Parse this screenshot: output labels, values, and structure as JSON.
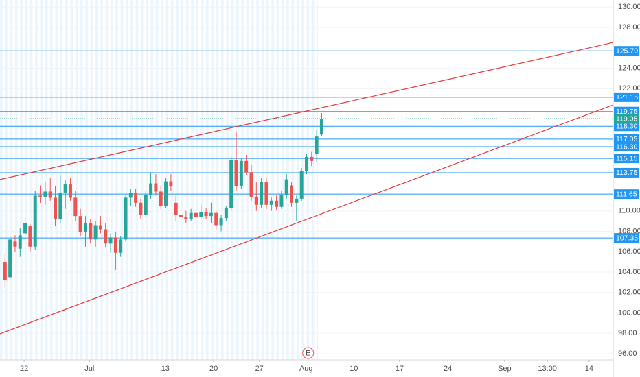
{
  "chart_data": {
    "type": "candlestick",
    "x": [
      0,
      1,
      2,
      3,
      4,
      5,
      6,
      7,
      8,
      9,
      10,
      11,
      12,
      13,
      14,
      15,
      16,
      17,
      18,
      19,
      20,
      21,
      22,
      23,
      24,
      25,
      26,
      27,
      28,
      29,
      30,
      31,
      32,
      33,
      34,
      35,
      36,
      37,
      38,
      39,
      40,
      41,
      42,
      43,
      44,
      45,
      46,
      47,
      48,
      49,
      50,
      51,
      52,
      53,
      54,
      55,
      56,
      57,
      58,
      59,
      60,
      61,
      62,
      63
    ],
    "open": [
      105.0,
      103.5,
      107.0,
      106.3,
      107.8,
      108.5,
      106.5,
      111.5,
      111.4,
      111.9,
      111.3,
      109.2,
      111.8,
      112.6,
      111.3,
      109.5,
      107.9,
      108.8,
      107.2,
      108.6,
      108.2,
      106.8,
      107.4,
      105.9,
      107.2,
      111.3,
      111.8,
      110.8,
      109.6,
      111.6,
      112.7,
      111.9,
      110.5,
      112.9,
      110.8,
      109.6,
      109.4,
      109.2,
      109.8,
      109.4,
      109.9,
      109.5,
      109.8,
      108.6,
      109.3,
      110.3,
      115.0,
      112.4,
      114.9,
      113.8,
      111.4,
      110.6,
      112.8,
      110.6,
      111.0,
      110.4,
      111.6,
      112.5,
      110.8,
      111.2,
      113.9,
      115.3,
      115.6,
      117.5
    ],
    "high": [
      105.8,
      107.5,
      107.6,
      108.3,
      109.4,
      108.7,
      112.0,
      112.5,
      112.8,
      113.2,
      112.4,
      113.5,
      113.0,
      113.2,
      112.0,
      110.2,
      109.5,
      109.2,
      109.0,
      109.5,
      108.8,
      107.8,
      107.9,
      107.5,
      111.5,
      112.2,
      112.2,
      111.2,
      112.0,
      113.8,
      113.6,
      112.5,
      113.2,
      113.6,
      111.5,
      110.3,
      110.0,
      110.2,
      110.6,
      110.6,
      110.3,
      110.8,
      110.0,
      109.6,
      110.5,
      115.3,
      117.8,
      115.2,
      115.5,
      114.5,
      112.8,
      113.2,
      113.2,
      111.3,
      111.5,
      112.0,
      113.6,
      112.8,
      111.5,
      114.2,
      115.6,
      115.8,
      118.0,
      119.6
    ],
    "low": [
      102.5,
      103.3,
      106.0,
      105.5,
      107.2,
      106.0,
      106.2,
      110.8,
      110.6,
      111.0,
      108.5,
      108.8,
      110.2,
      111.0,
      109.0,
      107.5,
      106.5,
      106.8,
      106.5,
      107.8,
      106.4,
      105.9,
      104.2,
      105.5,
      107.0,
      110.5,
      110.4,
      109.2,
      109.4,
      111.2,
      111.5,
      110.2,
      110.3,
      112.0,
      109.0,
      109.0,
      108.8,
      109.0,
      107.3,
      109.2,
      109.2,
      108.8,
      108.2,
      108.0,
      109.0,
      110.0,
      112.0,
      112.2,
      113.5,
      111.0,
      110.0,
      110.3,
      110.2,
      110.0,
      110.1,
      110.2,
      111.2,
      110.4,
      109.0,
      111.0,
      113.6,
      114.4,
      114.8,
      117.3
    ],
    "close": [
      103.2,
      107.2,
      106.5,
      107.6,
      108.8,
      106.5,
      111.5,
      111.4,
      111.9,
      111.3,
      109.2,
      111.8,
      112.6,
      111.3,
      109.5,
      107.9,
      108.8,
      107.2,
      108.6,
      108.2,
      106.8,
      107.4,
      105.9,
      107.2,
      111.3,
      111.8,
      110.8,
      109.6,
      111.6,
      112.7,
      111.9,
      110.5,
      112.9,
      112.4,
      109.6,
      109.4,
      109.2,
      109.8,
      109.4,
      109.9,
      109.5,
      109.8,
      108.6,
      109.3,
      110.3,
      115.0,
      112.4,
      114.9,
      113.8,
      111.4,
      110.6,
      112.8,
      110.6,
      111.0,
      110.4,
      111.6,
      113.1,
      110.8,
      111.2,
      113.9,
      115.3,
      114.9,
      117.3,
      119.05
    ],
    "up_color": "#26a69a",
    "down_color": "#ef5350",
    "xlim": [
      -1,
      121
    ],
    "xticks": [
      {
        "value": 3.8,
        "label": "22"
      },
      {
        "value": 16.8,
        "label": "Jul"
      },
      {
        "value": 31.9,
        "label": "13"
      },
      {
        "value": 41.5,
        "label": "20"
      },
      {
        "value": 50.6,
        "label": "27"
      },
      {
        "value": 59.9,
        "label": "Aug"
      },
      {
        "value": 69.4,
        "label": "10"
      },
      {
        "value": 78.5,
        "label": "17"
      },
      {
        "value": 88.1,
        "label": "24"
      },
      {
        "value": 99.4,
        "label": "Sep"
      },
      {
        "value": 107.9,
        "label": "13:00"
      },
      {
        "value": 116.2,
        "label": "14"
      }
    ],
    "ylim": [
      95.39,
      130.69
    ],
    "yticks": [
      {
        "value": 96,
        "label": "96.00"
      },
      {
        "value": 98,
        "label": "98.00"
      },
      {
        "value": 100,
        "label": "100.00"
      },
      {
        "value": 102,
        "label": "102.00"
      },
      {
        "value": 104,
        "label": "104.00"
      },
      {
        "value": 106,
        "label": "106.00"
      },
      {
        "value": 108,
        "label": "108.00"
      },
      {
        "value": 110,
        "label": "110.00"
      },
      {
        "value": 122,
        "label": "122.00"
      },
      {
        "value": 124,
        "label": "124.00"
      },
      {
        "value": 128,
        "label": "128.00"
      },
      {
        "value": 130,
        "label": "130.00"
      }
    ],
    "levels": [
      {
        "value": 125.7,
        "label": "125.70"
      },
      {
        "value": 121.15,
        "label": "121.15"
      },
      {
        "value": 119.75,
        "label": "119.75"
      },
      {
        "value": 118.3,
        "label": "118.30"
      },
      {
        "value": 117.05,
        "label": "117.05"
      },
      {
        "value": 116.3,
        "label": "116.30"
      },
      {
        "value": 115.15,
        "label": "115.15"
      },
      {
        "value": 113.75,
        "label": "113.75"
      },
      {
        "value": 111.65,
        "label": "111.65"
      },
      {
        "value": 107.35,
        "label": "107.35"
      }
    ],
    "level_color": "#2196f3",
    "current_price": {
      "value": 119.05,
      "label": "119.05"
    },
    "trend_lines": [
      {
        "x": [
          -1,
          121
        ],
        "y": [
          113.08,
          126.52
        ]
      },
      {
        "x": [
          -1,
          121
        ],
        "y": [
          97.95,
          120.4
        ]
      }
    ],
    "trend_color": "#e53935",
    "event_marker": {
      "x": 60.3,
      "label": "E"
    }
  }
}
